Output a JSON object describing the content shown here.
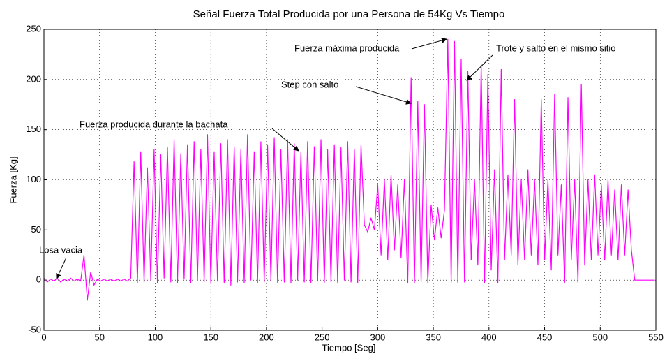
{
  "chart_data": {
    "type": "line",
    "title": "Señal Fuerza Total Producida por una Persona de 54Kg Vs Tiempo",
    "xlabel": "Tiempo [Seg]",
    "ylabel": "Fuerza [Kg]",
    "xlim": [
      0,
      550
    ],
    "ylim": [
      -50,
      250
    ],
    "xticks": [
      0,
      50,
      100,
      150,
      200,
      250,
      300,
      350,
      400,
      450,
      500,
      550
    ],
    "yticks": [
      -50,
      0,
      50,
      100,
      150,
      200,
      250
    ],
    "grid": true,
    "annotations": [
      "Losa vacia",
      "Fuerza producida durante la bachata",
      "Step con salto",
      "Fuerza máxima producida",
      "Trote y salto en el mismo sitio"
    ],
    "series": [
      {
        "color": "#ff00ff",
        "x": [
          0,
          3,
          6,
          9,
          12,
          15,
          18,
          21,
          24,
          27,
          30,
          33,
          36,
          39,
          42,
          45,
          48,
          51,
          54,
          57,
          60,
          63,
          66,
          69,
          72,
          75,
          78,
          81,
          84,
          87,
          90,
          93,
          96,
          99,
          102,
          105,
          108,
          111,
          114,
          117,
          120,
          123,
          126,
          129,
          132,
          135,
          138,
          141,
          144,
          147,
          150,
          153,
          156,
          159,
          162,
          165,
          168,
          171,
          174,
          177,
          180,
          183,
          186,
          189,
          192,
          195,
          198,
          201,
          204,
          207,
          210,
          213,
          216,
          219,
          222,
          225,
          228,
          231,
          234,
          237,
          240,
          243,
          246,
          249,
          252,
          255,
          258,
          261,
          264,
          267,
          270,
          273,
          276,
          279,
          282,
          285,
          288,
          291,
          294,
          297,
          300,
          303,
          306,
          309,
          312,
          315,
          318,
          321,
          324,
          327,
          330,
          333,
          336,
          339,
          342,
          345,
          348,
          351,
          354,
          357,
          360,
          363,
          366,
          369,
          372,
          375,
          378,
          381,
          384,
          387,
          390,
          393,
          396,
          399,
          402,
          405,
          408,
          411,
          414,
          417,
          420,
          423,
          426,
          429,
          432,
          435,
          438,
          441,
          444,
          447,
          450,
          453,
          456,
          459,
          462,
          465,
          468,
          471,
          474,
          477,
          480,
          483,
          486,
          489,
          492,
          495,
          498,
          501,
          504,
          507,
          510,
          513,
          516,
          519,
          522,
          525,
          528,
          531,
          534,
          537,
          540,
          543,
          546,
          549
        ],
        "values": [
          2,
          -2,
          1,
          -1,
          2,
          -2,
          1,
          -1,
          2,
          -1,
          1,
          -1,
          25,
          -20,
          8,
          -5,
          1,
          -1,
          1,
          -1,
          1,
          -1,
          1,
          -1,
          1,
          -1,
          2,
          118,
          -3,
          128,
          -2,
          112,
          0,
          130,
          -3,
          125,
          2,
          132,
          -2,
          140,
          -3,
          126,
          1,
          135,
          -3,
          138,
          0,
          130,
          -2,
          145,
          -3,
          128,
          -1,
          136,
          -3,
          140,
          -5,
          133,
          -2,
          130,
          -3,
          145,
          0,
          128,
          -3,
          138,
          -2,
          135,
          -1,
          142,
          -3,
          130,
          -2,
          140,
          -3,
          136,
          0,
          128,
          -2,
          138,
          -3,
          133,
          -1,
          140,
          -3,
          130,
          -2,
          135,
          -3,
          132,
          0,
          138,
          -2,
          130,
          -3,
          135,
          55,
          48,
          62,
          50,
          95,
          25,
          100,
          20,
          105,
          30,
          95,
          22,
          100,
          -3,
          202,
          -3,
          178,
          -2,
          175,
          -3,
          75,
          40,
          72,
          42,
          70,
          240,
          -3,
          238,
          -3,
          220,
          -2,
          208,
          20,
          100,
          15,
          215,
          -3,
          205,
          10,
          110,
          -3,
          210,
          20,
          105,
          25,
          180,
          15,
          100,
          20,
          110,
          25,
          100,
          15,
          180,
          20,
          100,
          10,
          185,
          25,
          95,
          -3,
          182,
          20,
          100,
          -3,
          195,
          15,
          100,
          20,
          105,
          25,
          95,
          20,
          100,
          25,
          90,
          20,
          95,
          25,
          90,
          30,
          0,
          0,
          0,
          0,
          0,
          0,
          0
        ]
      }
    ]
  }
}
